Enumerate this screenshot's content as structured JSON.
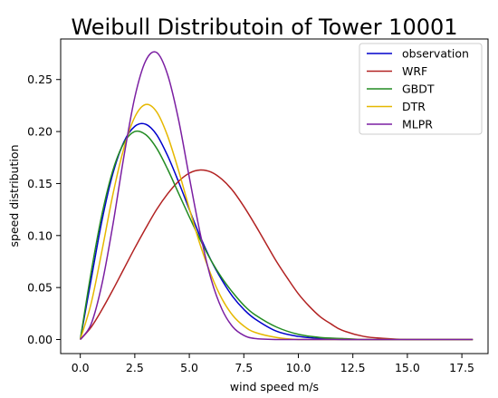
{
  "chart_data": {
    "type": "line",
    "title": "Weibull Distributoin of Tower 10001",
    "xlabel": "wind speed m/s",
    "ylabel": "speed distribution",
    "xlim": [
      -0.9,
      18.7
    ],
    "ylim": [
      -0.0135,
      0.289
    ],
    "xticks": [
      "0.0",
      "2.5",
      "5.0",
      "7.5",
      "10.0",
      "12.5",
      "15.0",
      "17.5"
    ],
    "yticks": [
      "0.00",
      "0.05",
      "0.10",
      "0.15",
      "0.20",
      "0.25"
    ],
    "grid": false,
    "legend_position": "top-right",
    "series": [
      {
        "name": "observation",
        "color": "#0000cc",
        "x": [
          0,
          0.5,
          1,
          1.5,
          2,
          2.5,
          3,
          3.5,
          4,
          4.5,
          5,
          5.5,
          6,
          6.5,
          7,
          7.5,
          8,
          9,
          10,
          11,
          12,
          13,
          14,
          15,
          16,
          17,
          18
        ],
        "y": [
          0,
          0.058,
          0.115,
          0.16,
          0.19,
          0.205,
          0.207,
          0.197,
          0.177,
          0.152,
          0.125,
          0.099,
          0.076,
          0.057,
          0.041,
          0.029,
          0.02,
          0.008,
          0.003,
          0.001,
          0,
          0,
          0,
          0,
          0,
          0,
          0
        ]
      },
      {
        "name": "WRF",
        "color": "#b22222",
        "x": [
          0,
          0.5,
          1,
          1.5,
          2,
          2.5,
          3,
          3.5,
          4,
          4.5,
          5,
          5.5,
          6,
          6.5,
          7,
          7.5,
          8,
          8.5,
          9,
          9.5,
          10,
          10.5,
          11,
          11.5,
          12,
          13,
          14,
          15,
          16,
          17,
          18
        ],
        "y": [
          0,
          0.012,
          0.029,
          0.048,
          0.068,
          0.088,
          0.107,
          0.125,
          0.14,
          0.152,
          0.16,
          0.163,
          0.161,
          0.154,
          0.143,
          0.128,
          0.111,
          0.093,
          0.075,
          0.059,
          0.044,
          0.032,
          0.022,
          0.015,
          0.009,
          0.003,
          0.001,
          0,
          0,
          0,
          0
        ]
      },
      {
        "name": "GBDT",
        "color": "#228b22",
        "x": [
          0,
          0.5,
          1,
          1.5,
          2,
          2.5,
          3,
          3.5,
          4,
          4.5,
          5,
          5.5,
          6,
          6.5,
          7,
          7.5,
          8,
          9,
          10,
          11,
          12,
          13,
          14,
          15,
          16,
          17,
          18
        ],
        "y": [
          0,
          0.065,
          0.121,
          0.163,
          0.189,
          0.2,
          0.197,
          0.184,
          0.164,
          0.141,
          0.118,
          0.096,
          0.076,
          0.059,
          0.045,
          0.033,
          0.024,
          0.012,
          0.005,
          0.002,
          0.001,
          0,
          0,
          0,
          0,
          0,
          0
        ]
      },
      {
        "name": "DTR",
        "color": "#e6b800",
        "x": [
          0,
          0.5,
          1,
          1.5,
          2,
          2.5,
          3,
          3.5,
          4,
          4.5,
          5,
          5.5,
          6,
          6.5,
          7,
          7.5,
          8,
          9,
          10,
          11,
          12,
          13,
          14,
          15,
          16,
          17,
          18
        ],
        "y": [
          0,
          0.035,
          0.086,
          0.14,
          0.184,
          0.214,
          0.226,
          0.219,
          0.196,
          0.163,
          0.126,
          0.091,
          0.062,
          0.039,
          0.023,
          0.013,
          0.007,
          0.002,
          0,
          0,
          0,
          0,
          0,
          0,
          0,
          0,
          0
        ]
      },
      {
        "name": "MLPR",
        "color": "#7b1fa2",
        "x": [
          0,
          0.5,
          1,
          1.5,
          2,
          2.5,
          3,
          3.5,
          4,
          4.5,
          5,
          5.5,
          6,
          6.5,
          7,
          7.5,
          8,
          9,
          10,
          11,
          12,
          13,
          14,
          15,
          16,
          17,
          18
        ],
        "y": [
          0,
          0.015,
          0.054,
          0.111,
          0.176,
          0.233,
          0.268,
          0.276,
          0.255,
          0.212,
          0.156,
          0.102,
          0.058,
          0.029,
          0.012,
          0.004,
          0.001,
          0,
          0,
          0,
          0,
          0,
          0,
          0,
          0,
          0,
          0
        ]
      }
    ]
  }
}
